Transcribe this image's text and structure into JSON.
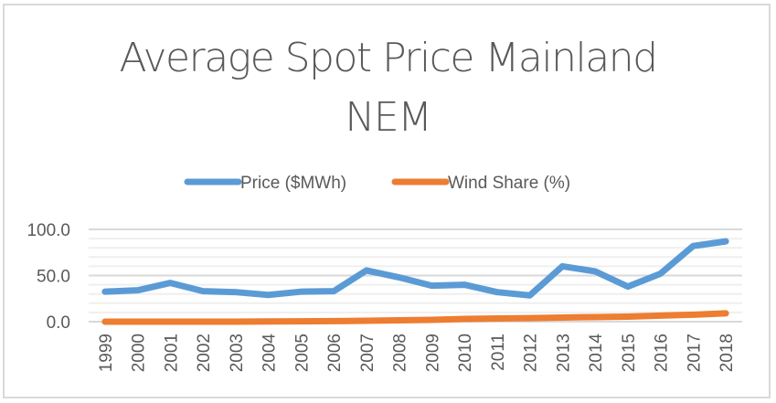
{
  "chart_data": {
    "type": "line",
    "title": "Average Spot Price Mainland NEM",
    "title_lines": [
      "Average Spot Price Mainland",
      "NEM"
    ],
    "xlabel": "",
    "ylabel": "",
    "categories": [
      "1999",
      "2000",
      "2001",
      "2002",
      "2003",
      "2004",
      "2005",
      "2006",
      "2007",
      "2008",
      "2009",
      "2010",
      "2011",
      "2012",
      "2013",
      "2014",
      "2015",
      "2016",
      "2017",
      "2018"
    ],
    "series": [
      {
        "name": "Price ($MWh)",
        "color": "#5b9bd5",
        "values": [
          32.5,
          34,
          42,
          33,
          32,
          29,
          32.5,
          33,
          55.5,
          48,
          39,
          40,
          32,
          28.5,
          60,
          54.5,
          38,
          52,
          82,
          87
        ]
      },
      {
        "name": "Wind Share (%)",
        "color": "#ed7d31",
        "values": [
          0,
          0,
          0,
          0,
          0,
          0.2,
          0.4,
          0.6,
          1,
          1.5,
          2,
          3,
          3.5,
          3.8,
          4.5,
          5,
          5.5,
          6.5,
          7.5,
          9
        ]
      }
    ],
    "ylim": [
      0,
      100
    ],
    "y_ticks": [
      "0.0",
      "50.0",
      "100.0"
    ],
    "y_tick_values": [
      0,
      50,
      100
    ],
    "minor_gridlines_step": 10,
    "grid": true,
    "legend_position": "top"
  }
}
